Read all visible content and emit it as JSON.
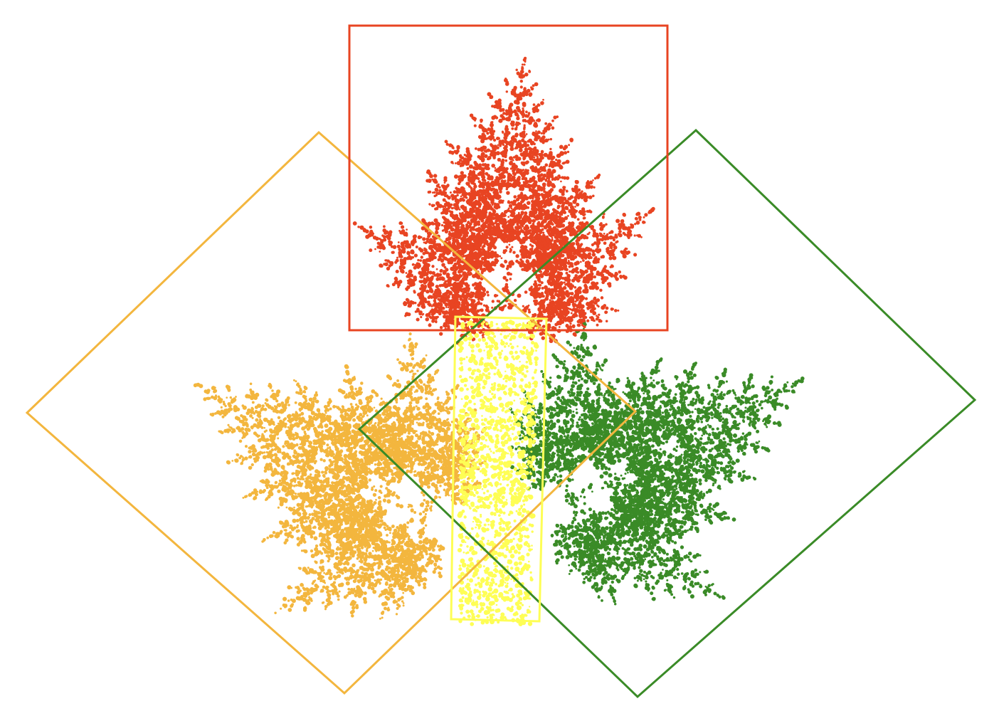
{
  "figure": {
    "background": "#ffffff",
    "description_visible_text": ""
  },
  "fractal_leaves": [
    {
      "name": "red-leaf",
      "color": "#e84422",
      "orientation": "upright",
      "rotation_deg": 0
    },
    {
      "name": "orange-leaf",
      "color": "#f3b63e",
      "orientation": "tilted-left",
      "rotation_deg": -45
    },
    {
      "name": "green-leaf",
      "color": "#3a8b27",
      "orientation": "tilted-right",
      "rotation_deg": 45
    },
    {
      "name": "yellow-stem",
      "color": "#fefe55",
      "orientation": "vertical",
      "rotation_deg": 0
    }
  ],
  "bounding_frames": [
    {
      "name": "red-frame",
      "color": "#e84422"
    },
    {
      "name": "orange-frame",
      "color": "#f3b63e"
    },
    {
      "name": "green-frame",
      "color": "#3a8b27"
    },
    {
      "name": "yellow-frame",
      "color": "#fefe55"
    }
  ]
}
